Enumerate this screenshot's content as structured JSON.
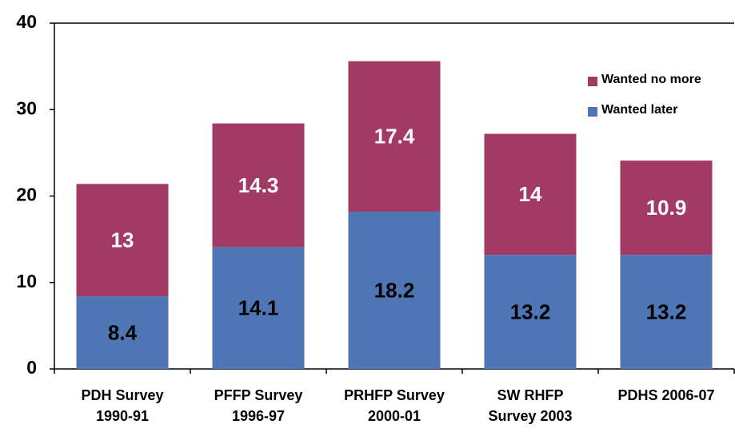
{
  "chart_data": {
    "type": "stacked_bar",
    "categories": [
      [
        "PDH Survey",
        "1990-91"
      ],
      [
        "PFFP Survey",
        "1996-97"
      ],
      [
        "PRHFP Survey",
        "2000-01"
      ],
      [
        "SW RHFP",
        "Survey 2003"
      ],
      [
        "PDHS 2006-07"
      ]
    ],
    "series": [
      {
        "name": "Wanted later",
        "color": "#4f76b4",
        "label_color": "#000000",
        "values": [
          8.4,
          14.1,
          18.2,
          13.2,
          13.2
        ]
      },
      {
        "name": "Wanted no more",
        "color": "#a33a66",
        "label_color": "#ffffff",
        "values": [
          13,
          14.3,
          17.4,
          14,
          10.9
        ]
      }
    ],
    "ylim": [
      0,
      40
    ],
    "yticks": [
      0,
      10,
      20,
      30,
      40
    ],
    "legend": "upper right"
  }
}
